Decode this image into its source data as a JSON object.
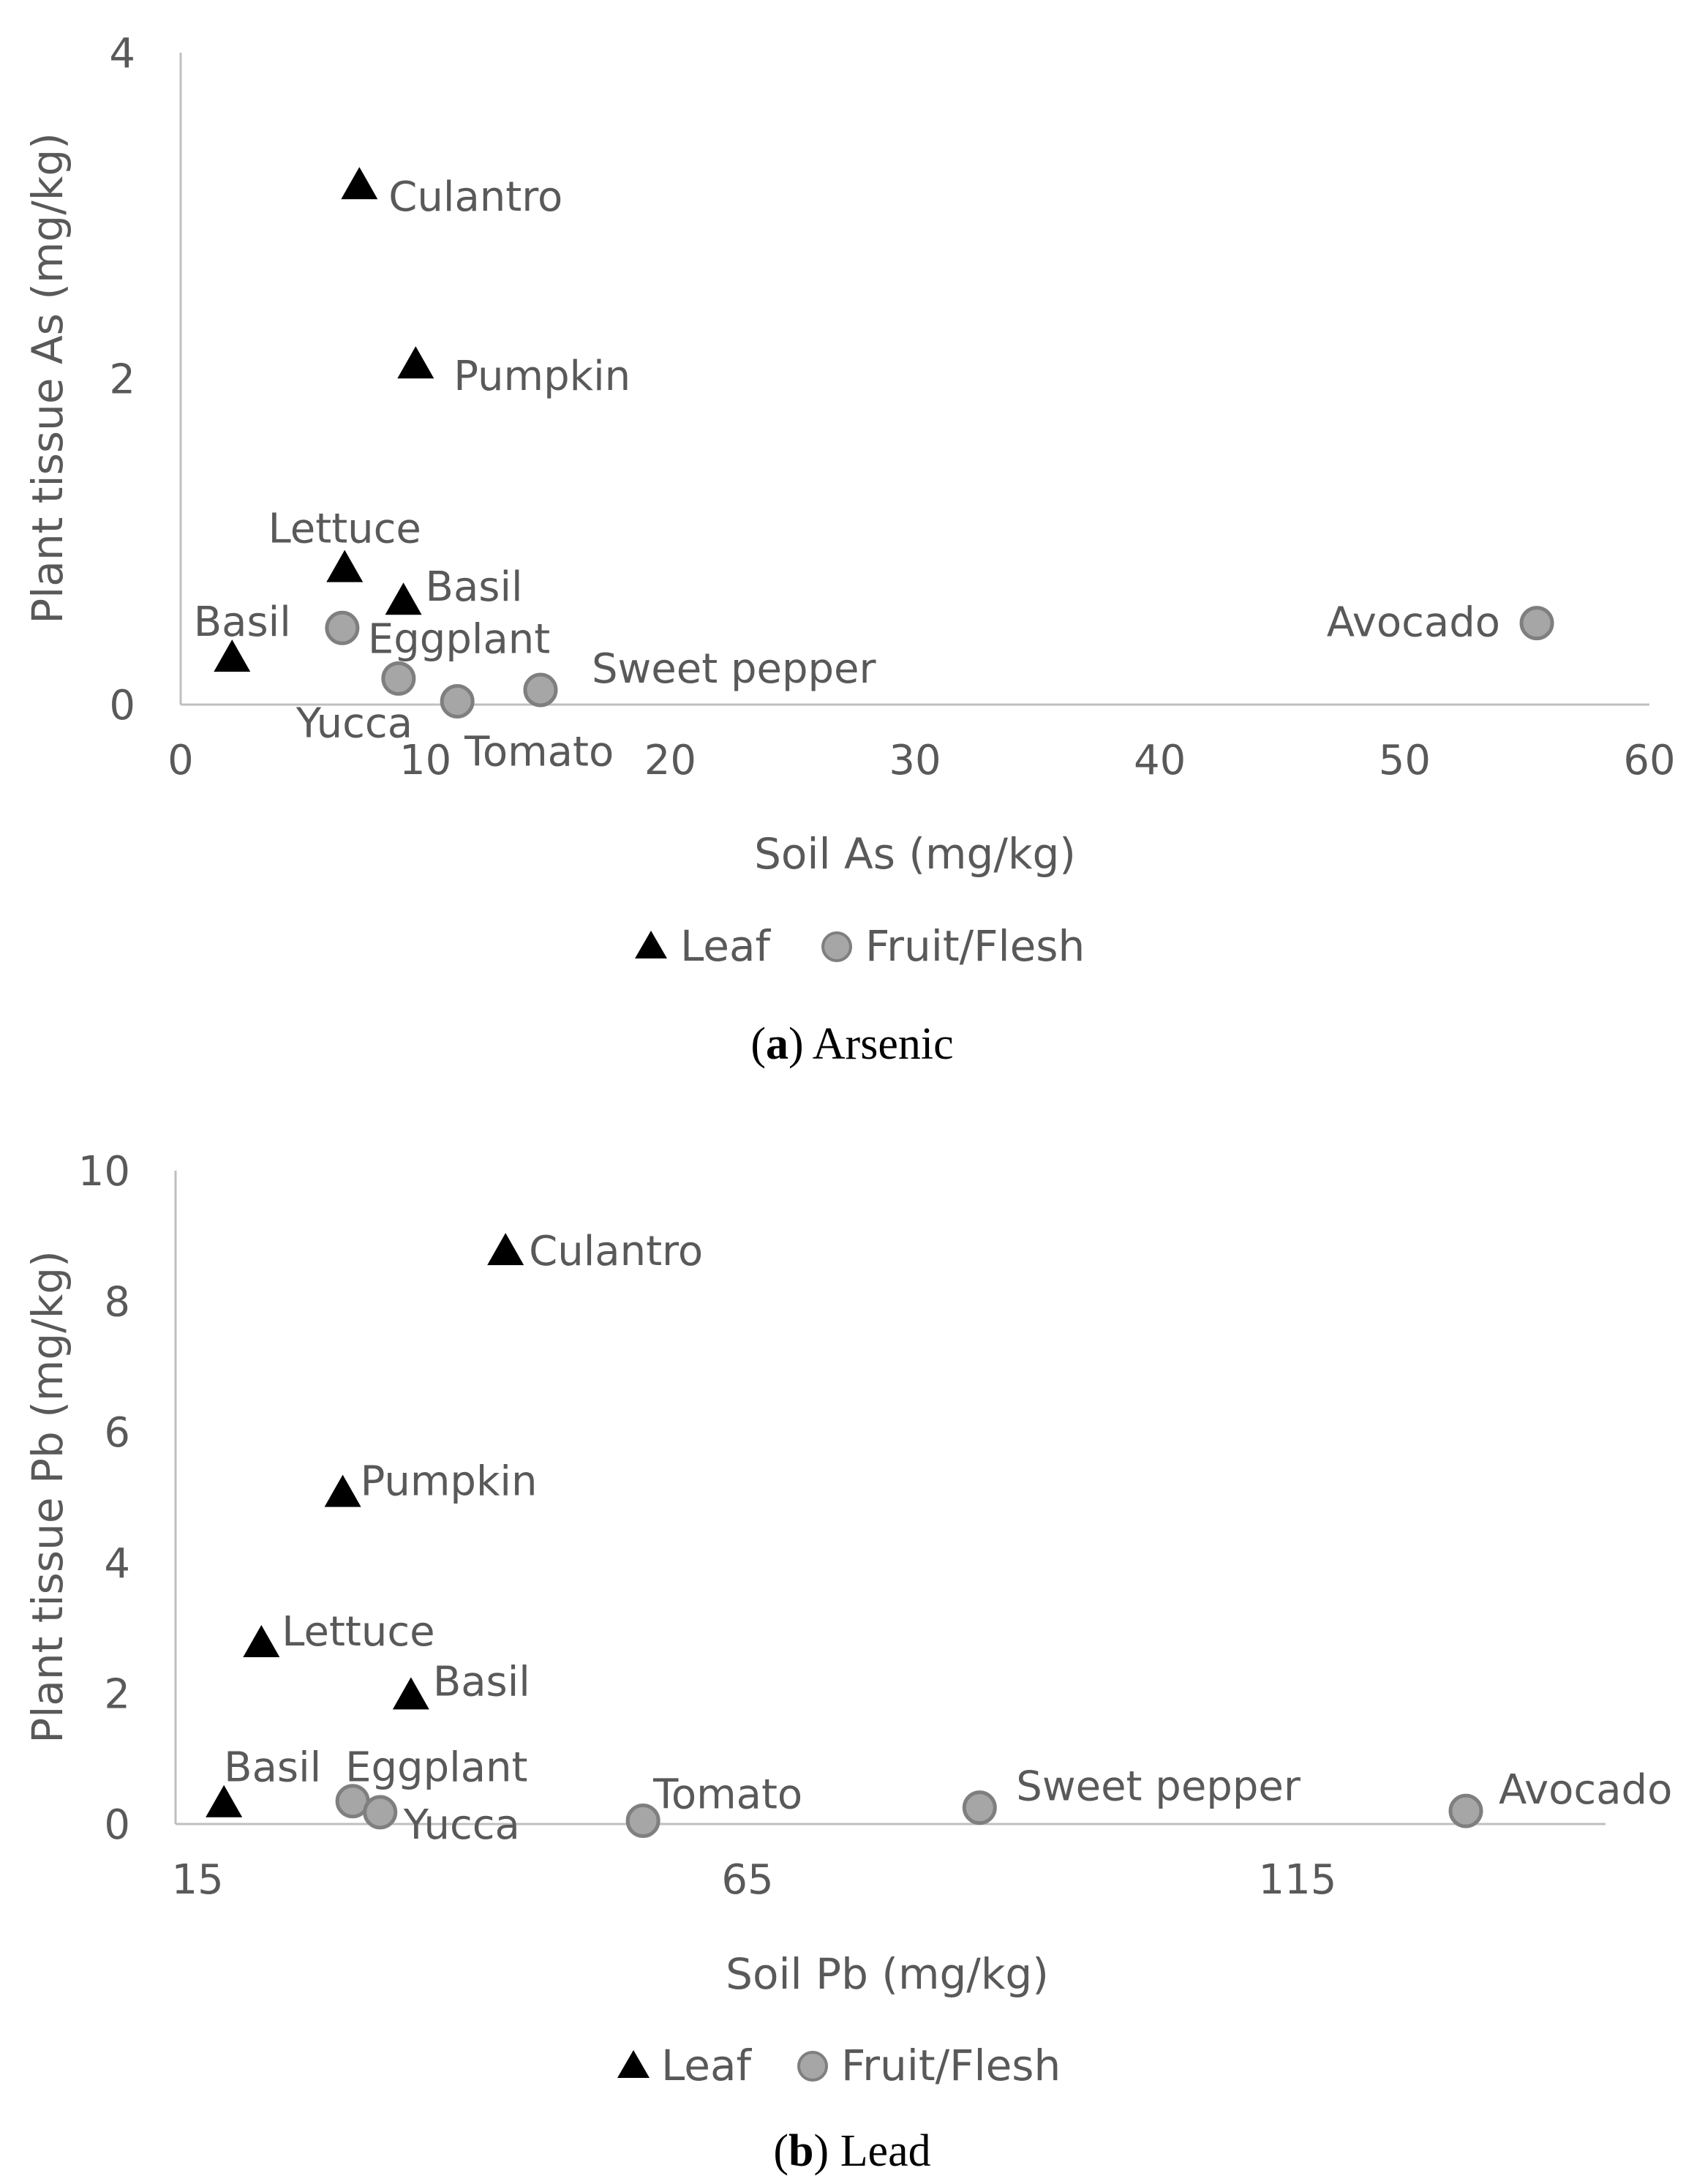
{
  "chart_data": [
    {
      "type": "scatter",
      "caption_letter": "a",
      "caption_text": "Arsenic",
      "xlabel": "Soil As (mg/kg)",
      "ylabel": "Plant tissue As (mg/kg)",
      "xlim": [
        0,
        60
      ],
      "ylim": [
        0,
        4
      ],
      "xticks": [
        0,
        10,
        20,
        30,
        40,
        50,
        60
      ],
      "yticks": [
        0,
        2,
        4
      ],
      "legend": "bottom-center",
      "grid": false,
      "series": [
        {
          "name": "Leaf",
          "marker": "triangle",
          "color": "#000000",
          "points": [
            {
              "label": "Culantro",
              "x": 7.3,
              "y": 3.2
            },
            {
              "label": "Pumpkin",
              "x": 9.6,
              "y": 2.1
            },
            {
              "label": "Lettuce",
              "x": 6.7,
              "y": 0.85
            },
            {
              "label": "Basil",
              "x": 9.1,
              "y": 0.65
            },
            {
              "label": "Basil",
              "x": 2.1,
              "y": 0.3
            }
          ]
        },
        {
          "name": "Fruit/Flesh",
          "marker": "circle",
          "color": "#a6a6a6",
          "points": [
            {
              "label": "Eggplant",
              "x": 6.6,
              "y": 0.47
            },
            {
              "label": "Yucca",
              "x": 8.9,
              "y": 0.16
            },
            {
              "label": "Tomato",
              "x": 11.3,
              "y": 0.02
            },
            {
              "label": "Sweet pepper",
              "x": 14.7,
              "y": 0.09
            },
            {
              "label": "Avocado",
              "x": 55.4,
              "y": 0.5
            }
          ]
        }
      ]
    },
    {
      "type": "scatter",
      "caption_letter": "b",
      "caption_text": "Lead",
      "xlabel": "Soil Pb (mg/kg)",
      "ylabel": "Plant tissue Pb (mg/kg)",
      "xlim": [
        13,
        143
      ],
      "ylim": [
        0,
        10
      ],
      "xticks": [
        15,
        65,
        115
      ],
      "yticks": [
        0,
        2,
        4,
        6,
        8,
        10
      ],
      "legend": "bottom-center",
      "grid": false,
      "series": [
        {
          "name": "Leaf",
          "marker": "triangle",
          "color": "#000000",
          "points": [
            {
              "label": "Culantro",
              "x": 43,
              "y": 8.8
            },
            {
              "label": "Pumpkin",
              "x": 28.2,
              "y": 5.1
            },
            {
              "label": "Lettuce",
              "x": 20.8,
              "y": 2.8
            },
            {
              "label": "Basil",
              "x": 34.4,
              "y": 2.0
            },
            {
              "label": "Basil",
              "x": 17.4,
              "y": 0.35
            }
          ]
        },
        {
          "name": "Fruit/Flesh",
          "marker": "circle",
          "color": "#a6a6a6",
          "points": [
            {
              "label": "Eggplant",
              "x": 29.1,
              "y": 0.35
            },
            {
              "label": "Yucca",
              "x": 31.6,
              "y": 0.18
            },
            {
              "label": "Tomato",
              "x": 55.5,
              "y": 0.05
            },
            {
              "label": "Sweet pepper",
              "x": 86.1,
              "y": 0.25
            },
            {
              "label": "Avocado",
              "x": 130.3,
              "y": 0.2
            }
          ]
        }
      ]
    }
  ]
}
